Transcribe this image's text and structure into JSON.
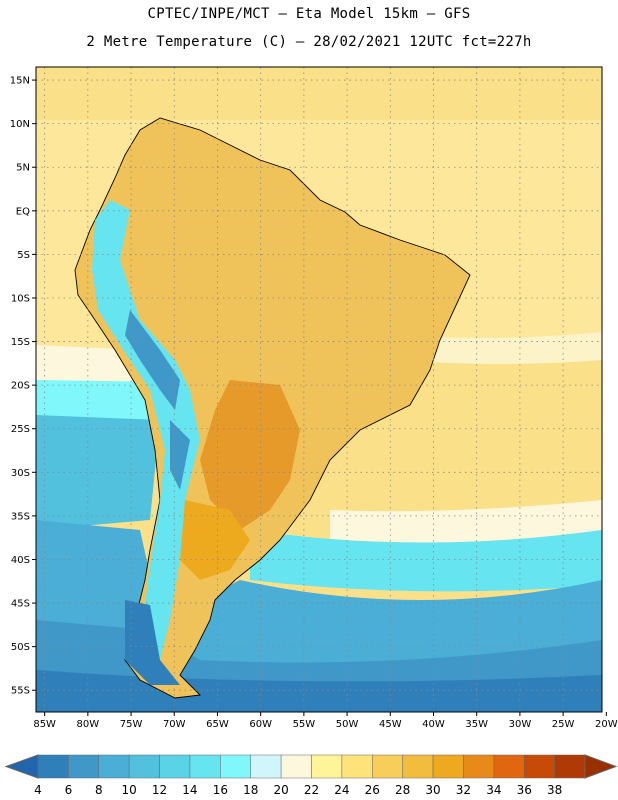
{
  "header": {
    "title_line1": "CPTEC/INPE/MCT –  Eta Model 15km – GFS",
    "title_line2": "2 Metre Temperature (C) – 28/02/2021 12UTC fct=227h"
  },
  "map": {
    "lat_labels": [
      "15N",
      "10N",
      "5N",
      "EQ",
      "5S",
      "10S",
      "15S",
      "20S",
      "25S",
      "30S",
      "35S",
      "40S",
      "45S",
      "50S",
      "55S"
    ],
    "lat_values": [
      15,
      10,
      5,
      0,
      -5,
      -10,
      -15,
      -20,
      -25,
      -30,
      -35,
      -40,
      -45,
      -50,
      -55
    ],
    "lon_labels": [
      "85W",
      "80W",
      "75W",
      "70W",
      "65W",
      "60W",
      "55W",
      "50W",
      "45W",
      "40W",
      "35W",
      "30W",
      "25W",
      "20W"
    ],
    "lon_values": [
      -85,
      -80,
      -75,
      -70,
      -65,
      -60,
      -55,
      -50,
      -45,
      -40,
      -35,
      -30,
      -25,
      -20
    ],
    "lat_range": [
      -57.5,
      16.5
    ],
    "lon_range": [
      -86,
      -20.5
    ],
    "ocean_color": "#fbe08a",
    "land_color": "#f0c35a"
  },
  "colorbar": {
    "labels": [
      "4",
      "6",
      "8",
      "10",
      "12",
      "14",
      "16",
      "18",
      "20",
      "22",
      "24",
      "26",
      "28",
      "30",
      "32",
      "34",
      "36",
      "38"
    ],
    "colors": [
      "#2166ac",
      "#2f7fba",
      "#3f98c8",
      "#4aaed6",
      "#52c1de",
      "#5ad3e6",
      "#66e4ef",
      "#7ff7fb",
      "#d0f6fb",
      "#fdf7dd",
      "#fef59a",
      "#fde37a",
      "#f8ce5a",
      "#f2bc3c",
      "#eeaa1e",
      "#e88a1a",
      "#e0660f",
      "#c84a07",
      "#b03a05",
      "#983000"
    ]
  }
}
